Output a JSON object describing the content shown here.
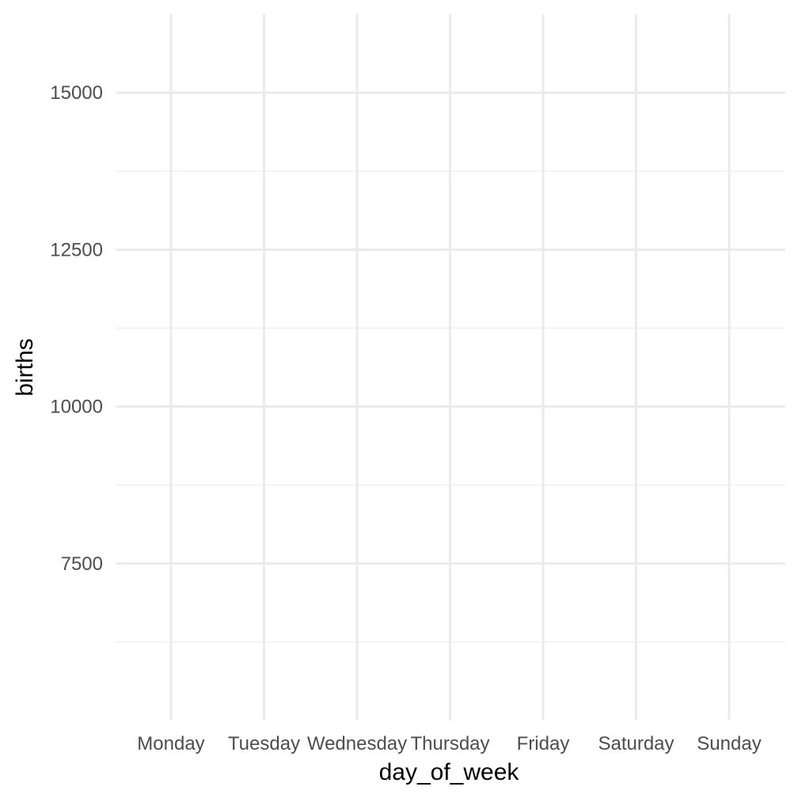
{
  "chart_data": {
    "type": "line",
    "title": "",
    "xlabel": "day_of_week",
    "ylabel": "births",
    "categories": [
      "Monday",
      "Tuesday",
      "Wednesday",
      "Thursday",
      "Friday",
      "Saturday",
      "Sunday"
    ],
    "y_ticks": [
      7500,
      10000,
      12500,
      15000
    ],
    "ylim": [
      5000,
      16250
    ],
    "series": [],
    "grid": true,
    "legend": "none",
    "colors": {
      "background": "#ffffff",
      "major_grid": "#ebebeb",
      "minor_grid": "#f0f0f0",
      "tick_text": "#4d4d4d",
      "axis_title": "#000000"
    }
  }
}
